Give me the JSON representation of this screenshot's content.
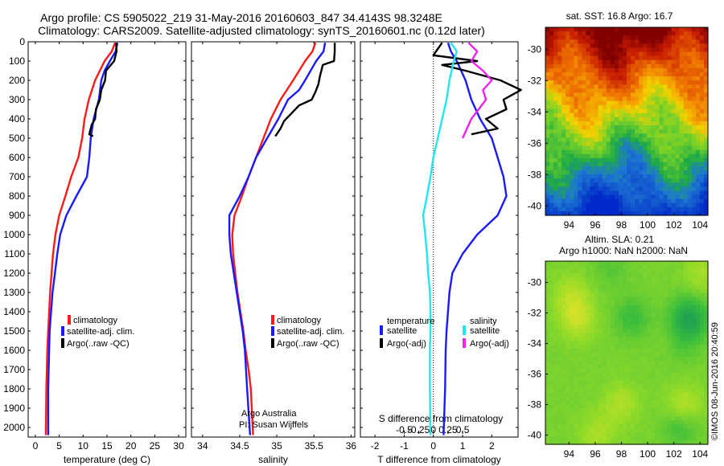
{
  "header": {
    "title_line1": "Argo profile: CS 5905022_219 31-May-2016 20160603_847 34.4143S 98.3248E",
    "title_line2": "Climatology: CARS2009. Satellite-adjusted climatology: synTS_20160601.nc (0.12d later)"
  },
  "colors": {
    "climatology": "#ff1a1a",
    "satellite": "#1a1aff",
    "argo": "#000000",
    "salinity_satellite": "#22e6ee",
    "salinity_argo": "#ee22ee"
  },
  "chart_data": [
    {
      "id": "temperature",
      "type": "line",
      "xlabel": "temperature (deg C)",
      "ylabel": "",
      "xlim": [
        -1.5,
        31.5
      ],
      "ylim": [
        0,
        2050
      ],
      "xticks": [
        0,
        5,
        10,
        15,
        20,
        25,
        30
      ],
      "xtick_labels": [
        "0",
        "5",
        "10",
        "15",
        "20",
        "25",
        "30"
      ],
      "yticks": [
        0,
        100,
        200,
        300,
        400,
        500,
        600,
        700,
        800,
        900,
        1000,
        1100,
        1200,
        1300,
        1400,
        1500,
        1600,
        1700,
        1800,
        1900,
        2000
      ],
      "ytick_labels": [
        "0",
        "100",
        "200",
        "300",
        "400",
        "500",
        "600",
        "700",
        "800",
        "900",
        "1000",
        "1100",
        "1200",
        "1300",
        "1400",
        "1500",
        "1600",
        "1700",
        "1800",
        "1900",
        "2000"
      ],
      "legend": [
        "climatology",
        "satellite-adj. clim.",
        "Argo(..raw -QC)"
      ],
      "series": [
        {
          "name": "climatology",
          "color": "#ff1a1a",
          "x": [
            16.7,
            16.0,
            14.5,
            12.5,
            11.2,
            10.3,
            9.8,
            9.0,
            7.5,
            6.3,
            5.0,
            4.2,
            3.7,
            3.4,
            3.1,
            2.9,
            2.7,
            2.5,
            2.4,
            2.3,
            2.2
          ],
          "y": [
            5,
            50,
            100,
            200,
            300,
            400,
            500,
            600,
            700,
            800,
            900,
            1000,
            1100,
            1200,
            1300,
            1400,
            1500,
            1600,
            1700,
            1800,
            2040
          ]
        },
        {
          "name": "satellite-adj. clim.",
          "color": "#1a1aff",
          "x": [
            17.2,
            16.8,
            15.6,
            14.5,
            13.8,
            13.3,
            12.2,
            11.6,
            11.3,
            10.8,
            8.6,
            6.5,
            5.2,
            4.6,
            4.1,
            3.6,
            3.3,
            3.0,
            2.9,
            2.7,
            2.7
          ],
          "y": [
            5,
            50,
            100,
            150,
            200,
            300,
            400,
            500,
            600,
            700,
            800,
            900,
            1000,
            1100,
            1200,
            1300,
            1400,
            1500,
            1600,
            1800,
            2040
          ]
        },
        {
          "name": "Argo(..raw -QC)",
          "color": "#000000",
          "x": [
            16.9,
            17.0,
            16.5,
            15.8,
            14.8,
            14.6,
            13.8,
            13.5,
            12.7,
            12.5,
            11.8,
            11.3,
            12.1
          ],
          "y": [
            5,
            50,
            100,
            120,
            150,
            200,
            250,
            300,
            350,
            400,
            430,
            480,
            490
          ]
        }
      ]
    },
    {
      "id": "salinity",
      "type": "line",
      "xlabel": "salinity",
      "ylabel": "",
      "xlim": [
        33.85,
        36.05
      ],
      "ylim": [
        0,
        2050
      ],
      "xticks": [
        34,
        34.5,
        35,
        35.5,
        36
      ],
      "xtick_labels": [
        "34",
        "34.5",
        "35",
        "35.5",
        "36"
      ],
      "legend": [
        "climatology",
        "satellite-adj. clim.",
        "Argo(..raw -QC)"
      ],
      "annotation": [
        "Argo Australia",
        "PI: Susan Wijffels"
      ],
      "series": [
        {
          "name": "climatology",
          "color": "#ff1a1a",
          "x": [
            35.52,
            35.48,
            35.38,
            35.22,
            35.05,
            34.92,
            34.82,
            34.72,
            34.62,
            34.53,
            34.43,
            34.4,
            34.41,
            34.44,
            34.47,
            34.51,
            34.55,
            34.58,
            34.62,
            34.65,
            34.68
          ],
          "y": [
            5,
            50,
            100,
            200,
            300,
            400,
            500,
            600,
            700,
            800,
            900,
            1000,
            1100,
            1200,
            1300,
            1400,
            1500,
            1600,
            1700,
            1800,
            2040
          ]
        },
        {
          "name": "satellite-adj. clim.",
          "color": "#1a1aff",
          "x": [
            35.65,
            35.63,
            35.53,
            35.38,
            35.3,
            35.15,
            35.02,
            34.87,
            34.72,
            34.62,
            34.5,
            34.36,
            34.36,
            34.38,
            34.42,
            34.46,
            34.5,
            34.54,
            34.57,
            34.6,
            34.64
          ],
          "y": [
            5,
            50,
            100,
            200,
            250,
            300,
            400,
            500,
            600,
            700,
            800,
            900,
            1000,
            1100,
            1200,
            1300,
            1400,
            1500,
            1600,
            1800,
            2040
          ]
        },
        {
          "name": "Argo(..raw -QC)",
          "color": "#000000",
          "x": [
            35.78,
            35.78,
            35.77,
            35.62,
            35.58,
            35.56,
            35.52,
            35.47,
            35.3,
            35.2,
            35.1,
            35.05,
            34.98
          ],
          "y": [
            5,
            50,
            100,
            120,
            180,
            220,
            260,
            300,
            330,
            370,
            410,
            450,
            490
          ]
        }
      ]
    },
    {
      "id": "difference",
      "type": "line",
      "xlabel": "T difference from climatology",
      "xlabel2": "S difference from climatology",
      "xlim": [
        -2.5,
        2.9
      ],
      "ylim": [
        0,
        2050
      ],
      "xticks": [
        -2,
        -1,
        0,
        1,
        2
      ],
      "xtick_labels": [
        "-2",
        "-1",
        "0",
        "1",
        "2"
      ],
      "sticks": [
        -1,
        -0.5,
        0,
        0.5,
        1
      ],
      "stick_labels": [
        "-0.5",
        "-0.25",
        "0",
        "0.25",
        "0.5"
      ],
      "legend_temperature_title": "temperature",
      "legend_salinity_title": "salinity",
      "legend_temperature": [
        "satellite",
        "Argo(-adj)"
      ],
      "legend_salinity": [
        "satellite",
        "Argo(-adj)"
      ],
      "series": [
        {
          "name": "satellite",
          "color": "#1a1aff",
          "x": [
            0.5,
            0.6,
            0.8,
            1.1,
            1.3,
            1.6,
            2.0,
            2.2,
            2.4,
            2.5,
            2.2,
            1.5,
            1.0,
            0.65,
            0.55,
            0.5,
            0.45,
            0.42,
            0.4,
            0.38,
            0.35
          ],
          "y": [
            5,
            50,
            100,
            200,
            300,
            400,
            500,
            600,
            700,
            800,
            900,
            1000,
            1100,
            1200,
            1300,
            1400,
            1500,
            1600,
            1800,
            1900,
            2040
          ]
        },
        {
          "name": "Argo(-adj)",
          "color": "#000000",
          "x": [
            0.3,
            0.0,
            1.5,
            0.3,
            1.1,
            2.3,
            3.0,
            2.4,
            2.5,
            1.8,
            2.2,
            1.3
          ],
          "y": [
            5,
            70,
            100,
            120,
            150,
            200,
            250,
            300,
            350,
            400,
            450,
            480
          ]
        },
        {
          "name": "satellite",
          "color": "#22e6ee",
          "x": [
            0.6,
            0.8,
            0.7,
            0.55,
            0.45,
            0.3,
            0.15,
            0.0,
            -0.1,
            -0.22,
            -0.35,
            -0.28,
            -0.22,
            -0.18,
            -0.12,
            -0.1,
            -0.1,
            -0.12,
            -0.12,
            -0.12,
            -0.1
          ],
          "y": [
            5,
            50,
            100,
            200,
            300,
            400,
            500,
            600,
            700,
            800,
            900,
            1000,
            1100,
            1200,
            1300,
            1400,
            1500,
            1600,
            1700,
            1800,
            2040
          ]
        },
        {
          "name": "Argo(-adj)",
          "color": "#ee22ee",
          "x": [
            1.2,
            1.5,
            1.3,
            1.7,
            2.0,
            1.7,
            1.8,
            1.3,
            1.0
          ],
          "y": [
            5,
            50,
            100,
            150,
            200,
            250,
            300,
            400,
            500
          ]
        }
      ]
    },
    {
      "id": "sst_map",
      "type": "heatmap",
      "title": "sat. SST: 16.8 Argo: 16.7",
      "xticks": [
        94,
        96,
        98,
        100,
        102,
        104
      ],
      "xtick_labels": [
        "94",
        "96",
        "98",
        "100",
        "102",
        "104"
      ],
      "yticks": [
        -30,
        -32,
        -34,
        -36,
        -38,
        -40
      ],
      "ytick_labels": [
        "-30",
        "-32",
        "-34",
        "-36",
        "-38",
        "-40"
      ],
      "xlim": [
        92.2,
        104.6
      ],
      "ylim": [
        -40.6,
        -28.6
      ]
    },
    {
      "id": "sla_map",
      "type": "heatmap",
      "title_line1": "Altim. SLA: 0.21",
      "title_line2": "Argo h1000: NaN h2000: NaN",
      "xticks": [
        94,
        96,
        98,
        100,
        102,
        104
      ],
      "xtick_labels": [
        "94",
        "96",
        "98",
        "100",
        "102",
        "104"
      ],
      "yticks": [
        -30,
        -32,
        -34,
        -36,
        -38,
        -40
      ],
      "ytick_labels": [
        "-30",
        "-32",
        "-34",
        "-36",
        "-38",
        "-40"
      ],
      "xlim": [
        92.2,
        104.6
      ],
      "ylim": [
        -40.6,
        -28.6
      ]
    }
  ],
  "footer": {
    "stamp": "©IMOS 08-Jun-2016 20:40:59"
  }
}
